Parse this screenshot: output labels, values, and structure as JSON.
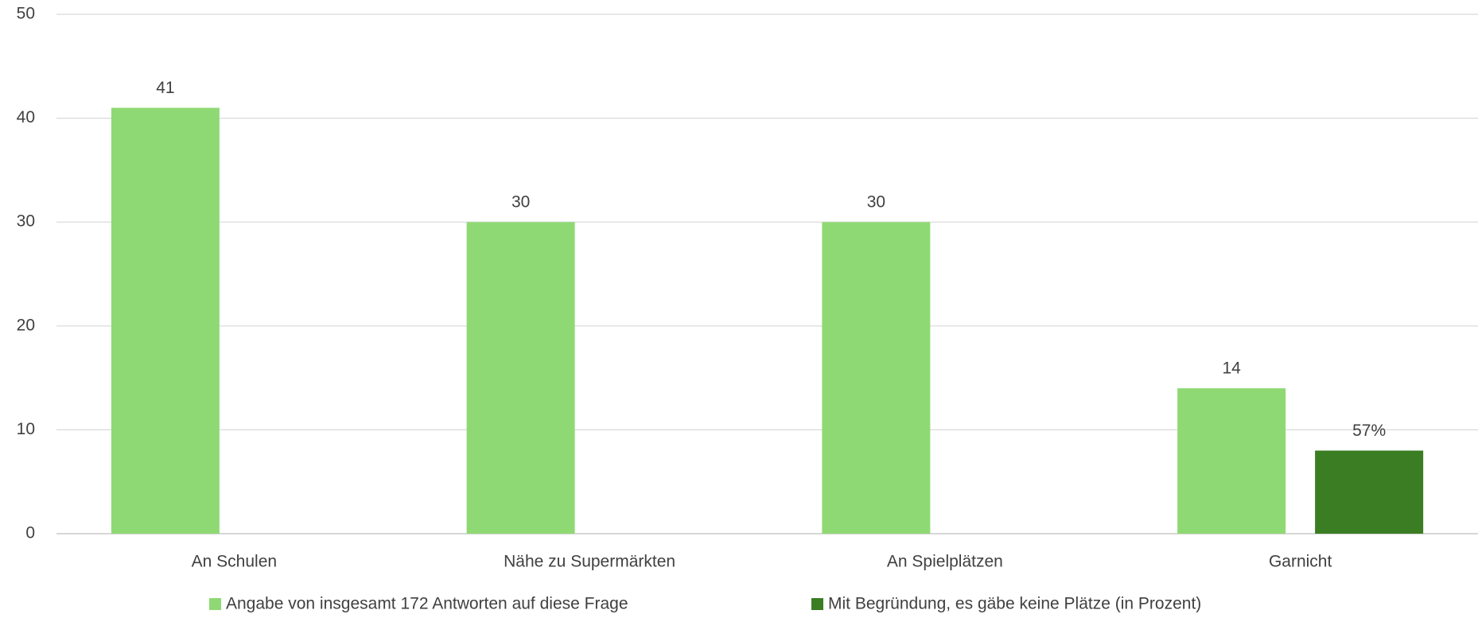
{
  "chart_data": {
    "type": "bar",
    "categories": [
      "An Schulen",
      "Nähe zu Supermärkten",
      "An Spielplätzen",
      "Garnicht"
    ],
    "series": [
      {
        "name": "Angabe von insgesamt 172 Antworten auf diese Frage",
        "color": "#8fd974",
        "values": [
          41,
          30,
          30,
          14
        ]
      },
      {
        "name": "Mit Begründung, es gäbe keine Plätze (in Prozent)",
        "color": "#3a7d22",
        "values": [
          null,
          null,
          null,
          8
        ]
      }
    ],
    "annotations": [
      {
        "text": "57%"
      }
    ],
    "ylim": [
      0,
      50
    ],
    "yticks": [
      0,
      10,
      20,
      30,
      40,
      50
    ],
    "grid": true,
    "legend": "bottom"
  }
}
